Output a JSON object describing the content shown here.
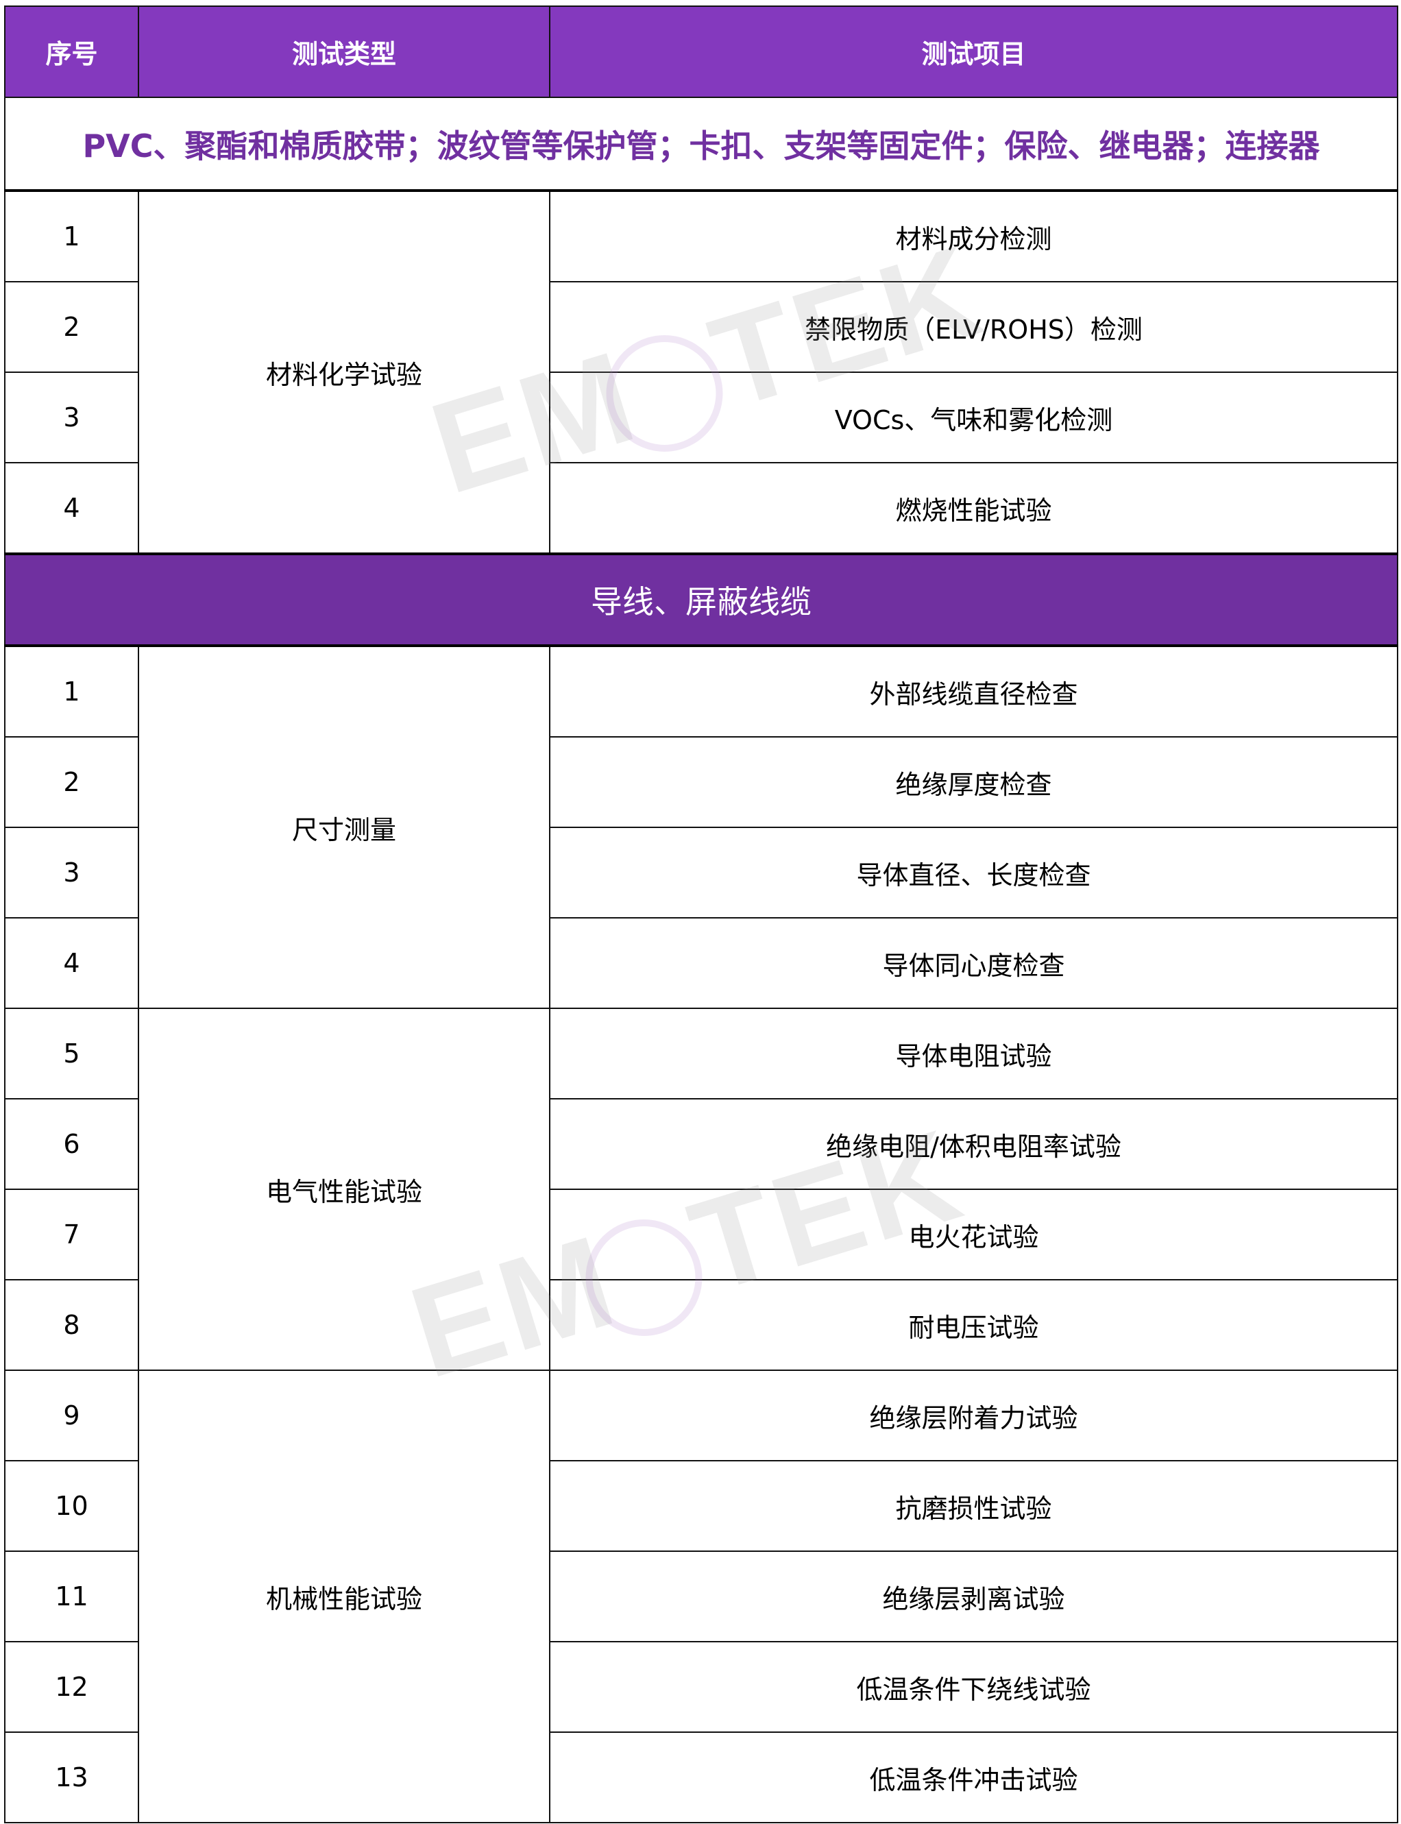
{
  "header": {
    "col_index": "序号",
    "col_type": "测试类型",
    "col_item": "测试项目"
  },
  "section1": {
    "title": "PVC、聚酯和棉质胶带；波纹管等保护管；卡扣、支架等固定件；保险、继电器；连接器",
    "groups": [
      {
        "type": "材料化学试验",
        "rows": [
          {
            "no": "1",
            "item": "材料成分检测"
          },
          {
            "no": "2",
            "item": "禁限物质（ELV/ROHS）检测"
          },
          {
            "no": "3",
            "item": "VOCs、气味和雾化检测"
          },
          {
            "no": "4",
            "item": "燃烧性能试验"
          }
        ]
      }
    ]
  },
  "section2": {
    "title": "导线、屏蔽线缆",
    "groups": [
      {
        "type": "尺寸测量",
        "rows": [
          {
            "no": "1",
            "item": "外部线缆直径检查"
          },
          {
            "no": "2",
            "item": "绝缘厚度检查"
          },
          {
            "no": "3",
            "item": "导体直径、长度检查"
          },
          {
            "no": "4",
            "item": "导体同心度检查"
          }
        ]
      },
      {
        "type": "电气性能试验",
        "rows": [
          {
            "no": "5",
            "item": "导体电阻试验"
          },
          {
            "no": "6",
            "item": "绝缘电阻/体积电阻率试验"
          },
          {
            "no": "7",
            "item": "电火花试验"
          },
          {
            "no": "8",
            "item": "耐电压试验"
          }
        ]
      },
      {
        "type": "机械性能试验",
        "rows": [
          {
            "no": "9",
            "item": "绝缘层附着力试验"
          },
          {
            "no": "10",
            "item": "抗磨损性试验"
          },
          {
            "no": "11",
            "item": "绝缘层剥离试验"
          },
          {
            "no": "12",
            "item": "低温条件下绕线试验"
          },
          {
            "no": "13",
            "item": "低温条件冲击试验"
          }
        ]
      }
    ]
  },
  "watermark": "EMTEK",
  "colors": {
    "header_bg": "#8439be",
    "band_bg": "#7030a0",
    "title_text": "#7030a0"
  }
}
